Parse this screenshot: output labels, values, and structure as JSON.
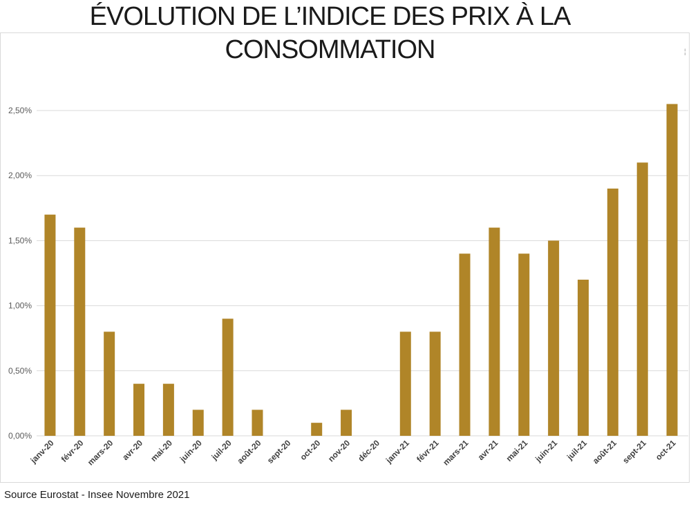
{
  "title_line1": "ÉVOLUTION DE L’INDICE DES PRIX À LA",
  "title_line2": "CONSOMMATION",
  "source": "Source Eurostat - Insee Novembre 2021",
  "corner_mark": "¦",
  "colors": {
    "bar": "#B08528",
    "grid": "#d9d9d9",
    "tick_text": "#595959",
    "x_label_text": "#404040"
  },
  "chart_data": {
    "type": "bar",
    "title": "ÉVOLUTION DE L’INDICE DES PRIX À LA CONSOMMATION",
    "xlabel": "",
    "ylabel": "",
    "categories": [
      "janv-20",
      "févr-20",
      "mars-20",
      "avr-20",
      "mai-20",
      "juin-20",
      "juil-20",
      "août-20",
      "sept-20",
      "oct-20",
      "nov-20",
      "déc-20",
      "janv-21",
      "févr-21",
      "mars-21",
      "avr-21",
      "mai-21",
      "juin-21",
      "juil-21",
      "août-21",
      "sept-21",
      "oct-21"
    ],
    "values": [
      1.7,
      1.6,
      0.8,
      0.4,
      0.4,
      0.2,
      0.9,
      0.2,
      0.0,
      0.1,
      0.2,
      0.0,
      0.8,
      0.8,
      1.4,
      1.6,
      1.4,
      1.5,
      1.2,
      1.9,
      2.1,
      2.55
    ],
    "ylim": [
      0,
      2.5
    ],
    "yticks": [
      0,
      0.5,
      1.0,
      1.5,
      2.0,
      2.5
    ],
    "ytick_labels": [
      "0,00%",
      "0,50%",
      "1,00%",
      "1,50%",
      "2,00%",
      "2,50%"
    ],
    "grid": true,
    "legend": "none"
  }
}
